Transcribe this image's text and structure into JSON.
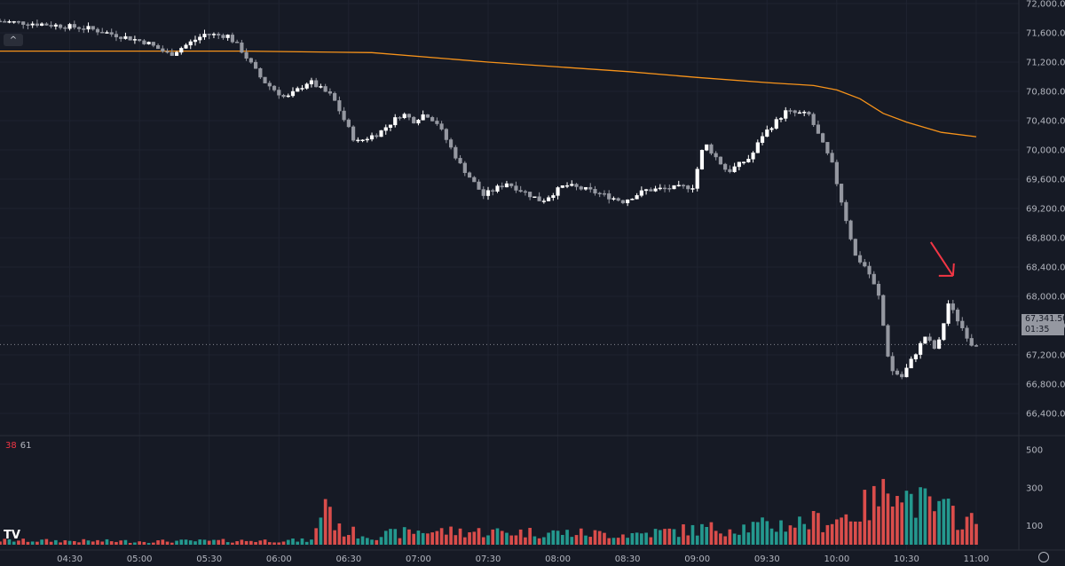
{
  "chart_data": {
    "type": "candlestick",
    "x_ticks": [
      "04:30",
      "05:00",
      "05:30",
      "06:00",
      "06:30",
      "07:00",
      "07:30",
      "08:00",
      "08:30",
      "09:00",
      "09:30",
      "10:00",
      "10:30",
      "11:00"
    ],
    "y_ticks": [
      "72,000.00",
      "71,600.00",
      "71,200.00",
      "70,800.00",
      "70,400.00",
      "70,000.00",
      "69,600.00",
      "69,200.00",
      "68,800.00",
      "68,400.00",
      "68,000.00",
      "67,600.00",
      "67,200.00",
      "66,800.00",
      "66,400.00"
    ],
    "y_range": [
      66400,
      72000
    ],
    "volume_ticks": [
      "500",
      "300",
      "100"
    ],
    "volume_range": [
      0,
      500
    ],
    "volume_legend": [
      "38",
      "61"
    ],
    "last_price_label": "67,341.50",
    "countdown": "01:35",
    "last_price": 67341.5,
    "colors": {
      "up": "#ffffff",
      "down": "#9598a1",
      "vol_up": "#26a69a",
      "vol_down": "#ef5350",
      "ma": "#f7931a",
      "arrow": "#f23645"
    },
    "moving_average": [
      [
        "04:00",
        71350
      ],
      [
        "05:00",
        71350
      ],
      [
        "05:45",
        71350
      ],
      [
        "06:40",
        71330
      ],
      [
        "07:30",
        71200
      ],
      [
        "08:30",
        71070
      ],
      [
        "09:00",
        70990
      ],
      [
        "09:30",
        70920
      ],
      [
        "09:50",
        70880
      ],
      [
        "10:00",
        70820
      ],
      [
        "10:10",
        70700
      ],
      [
        "10:20",
        70500
      ],
      [
        "10:30",
        70380
      ],
      [
        "10:45",
        70240
      ],
      [
        "11:00",
        70180
      ]
    ],
    "key_points": [
      [
        "04:00",
        71760
      ],
      [
        "04:20",
        71720
      ],
      [
        "04:40",
        71660
      ],
      [
        "05:05",
        71470
      ],
      [
        "05:15",
        71300
      ],
      [
        "05:30",
        71580
      ],
      [
        "05:40",
        71560
      ],
      [
        "05:45",
        71400
      ],
      [
        "05:55",
        70950
      ],
      [
        "06:05",
        70700
      ],
      [
        "06:15",
        70940
      ],
      [
        "06:25",
        70730
      ],
      [
        "06:35",
        70100
      ],
      [
        "06:45",
        70230
      ],
      [
        "06:55",
        70500
      ],
      [
        "07:00",
        70400
      ],
      [
        "07:05",
        70500
      ],
      [
        "07:10",
        70370
      ],
      [
        "07:20",
        69800
      ],
      [
        "07:30",
        69380
      ],
      [
        "07:40",
        69550
      ],
      [
        "07:55",
        69300
      ],
      [
        "08:05",
        69520
      ],
      [
        "08:15",
        69450
      ],
      [
        "08:30",
        69300
      ],
      [
        "08:40",
        69450
      ],
      [
        "09:00",
        69500
      ],
      [
        "09:05",
        70100
      ],
      [
        "09:15",
        69700
      ],
      [
        "09:25",
        69900
      ],
      [
        "09:30",
        70200
      ],
      [
        "09:40",
        70520
      ],
      [
        "09:50",
        70480
      ],
      [
        "10:00",
        69800
      ],
      [
        "10:10",
        68550
      ],
      [
        "10:15",
        68380
      ],
      [
        "10:20",
        68000
      ],
      [
        "10:25",
        67000
      ],
      [
        "10:30",
        66900
      ],
      [
        "10:40",
        67450
      ],
      [
        "10:45",
        67250
      ],
      [
        "10:50",
        67900
      ],
      [
        "11:00",
        67350
      ]
    ],
    "volume_key_points": [
      [
        "04:00",
        25
      ],
      [
        "05:00",
        20
      ],
      [
        "05:30",
        22
      ],
      [
        "06:00",
        25
      ],
      [
        "06:15",
        25
      ],
      [
        "06:20",
        300
      ],
      [
        "06:25",
        90
      ],
      [
        "06:40",
        50
      ],
      [
        "07:00",
        80
      ],
      [
        "07:30",
        75
      ],
      [
        "08:00",
        70
      ],
      [
        "08:30",
        60
      ],
      [
        "09:00",
        90
      ],
      [
        "09:30",
        110
      ],
      [
        "10:00",
        150
      ],
      [
        "10:10",
        200
      ],
      [
        "10:20",
        280
      ],
      [
        "10:25",
        480
      ],
      [
        "10:30",
        280
      ],
      [
        "10:40",
        220
      ],
      [
        "10:50",
        180
      ],
      [
        "11:00",
        120
      ]
    ],
    "annotations": [
      {
        "type": "arrow",
        "color": "#f23645",
        "time": "10:50",
        "price": 68280
      }
    ]
  }
}
